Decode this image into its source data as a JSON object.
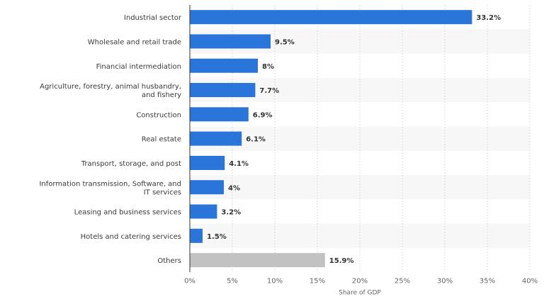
{
  "chart_data": {
    "type": "bar",
    "orientation": "horizontal",
    "title": "",
    "xlabel": "Share of GDP",
    "ylabel": "",
    "xlim": [
      0,
      40
    ],
    "x_ticks": [
      "0%",
      "5%",
      "10%",
      "15%",
      "20%",
      "25%",
      "30%",
      "35%",
      "40%"
    ],
    "grid": true,
    "categories": [
      [
        "Industrial sector"
      ],
      [
        "Wholesale and retail trade"
      ],
      [
        "Financial intermediation"
      ],
      [
        "Agriculture, forestry, animal husbandry,",
        "and fishery"
      ],
      [
        "Construction"
      ],
      [
        "Real estate"
      ],
      [
        "Transport, storage, and post"
      ],
      [
        "Information transmission, Software, and",
        "IT services"
      ],
      [
        "Leasing and business services"
      ],
      [
        "Hotels and catering services"
      ],
      [
        "Others"
      ]
    ],
    "values": [
      33.2,
      9.5,
      8,
      7.7,
      6.9,
      6.1,
      4.1,
      4,
      3.2,
      1.5,
      15.9
    ],
    "value_labels": [
      "33.2%",
      "9.5%",
      "8%",
      "7.7%",
      "6.9%",
      "6.1%",
      "4.1%",
      "4%",
      "3.2%",
      "1.5%",
      "15.9%"
    ],
    "colors": {
      "bar": "#2a75d9",
      "others_bar": "#c2c2c2",
      "band": "#f7f7f7",
      "axis": "#333333",
      "grid": "#dddddd"
    },
    "highlight_index": 10
  }
}
